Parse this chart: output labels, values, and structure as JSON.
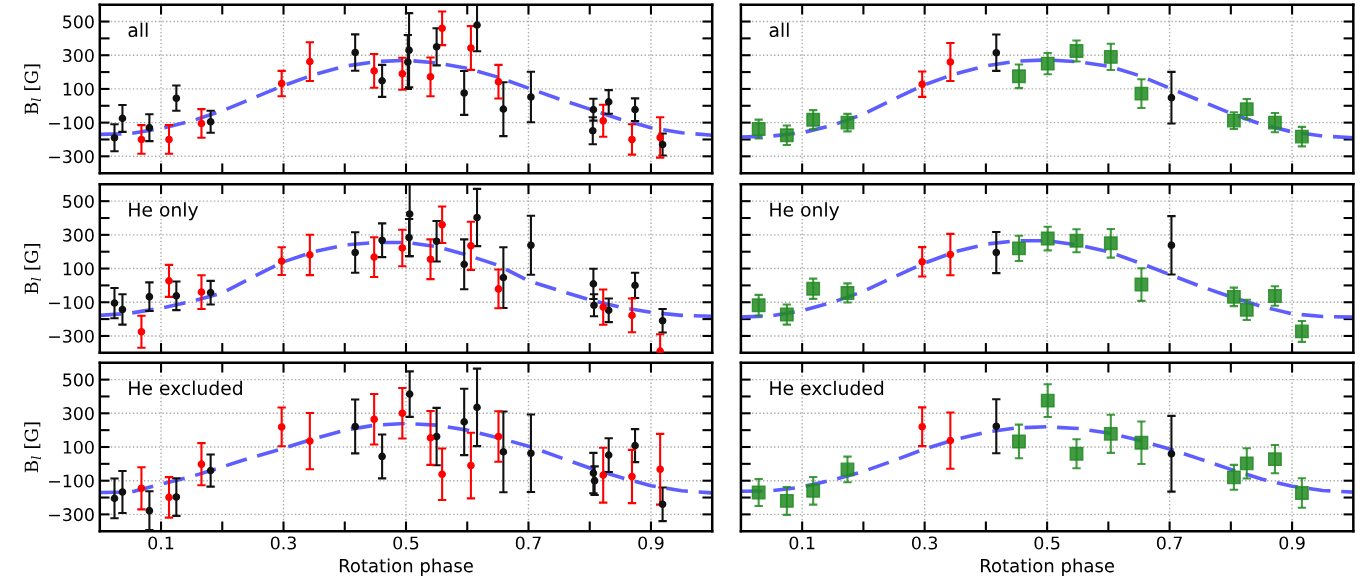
{
  "chart_data": [
    {
      "type": "scatter",
      "ylabel": "B$_{l}$ [G]",
      "annotations": [
        "all"
      ],
      "xlim": [
        0,
        1
      ],
      "ylim": [
        -400,
        600
      ],
      "xticks": [
        0.1,
        {
          "value": 0.2,
          "label": null
        },
        0.3,
        {
          "value": 0.4,
          "label": null
        },
        0.5,
        {
          "value": 0.6,
          "label": null
        },
        0.7,
        {
          "value": 0.8,
          "label": null
        },
        0.9
      ],
      "yticks": [
        {
          "value": -300,
          "label": "−300"
        },
        {
          "value": -200,
          "label": null
        },
        {
          "value": -100,
          "label": "−100"
        },
        {
          "value": 0,
          "label": null
        },
        100,
        {
          "value": 200,
          "label": null
        },
        300,
        {
          "value": 400,
          "label": null
        },
        500
      ],
      "tick_labels": "y",
      "grid": true,
      "series": [
        {
          "type": "scatter",
          "marker": "circle",
          "color": "#111111",
          "x": [
            0.024,
            0.037,
            0.081,
            0.125,
            0.181,
            0.417,
            0.461,
            0.503,
            0.505,
            0.55,
            0.595,
            0.616,
            0.659,
            0.704,
            0.805,
            0.806,
            0.831,
            0.874,
            0.919
          ],
          "values": [
            -190,
            -75,
            -130,
            45,
            -95,
            316,
            148,
            260,
            330,
            350,
            76,
            479,
            -20,
            52,
            -148,
            -23,
            23,
            -23,
            -230
          ],
          "errors": [
            80,
            80,
            80,
            75,
            65,
            108,
            95,
            160,
            220,
            110,
            130,
            155,
            160,
            150,
            80,
            65,
            70,
            67,
            65
          ]
        },
        {
          "type": "scatter",
          "marker": "circle",
          "color": "#ff0000",
          "x": [
            0.068,
            0.113,
            0.166,
            0.297,
            0.343,
            0.448,
            0.494,
            0.54,
            0.559,
            0.606,
            0.651,
            0.822,
            0.869,
            0.915
          ],
          "values": [
            -200,
            -200,
            -105,
            132,
            262,
            207,
            190,
            172,
            460,
            343,
            143,
            -89,
            -200,
            -188
          ],
          "errors": [
            85,
            85,
            85,
            75,
            115,
            100,
            95,
            115,
            100,
            130,
            100,
            95,
            90,
            120
          ]
        },
        {
          "type": "line",
          "line_style": "dashed",
          "color": "#4d4dff",
          "x": [
            0,
            0.05,
            0.1,
            0.15,
            0.2,
            0.25,
            0.3,
            0.35,
            0.4,
            0.45,
            0.5,
            0.55,
            0.6,
            0.65,
            0.7,
            0.75,
            0.8,
            0.85,
            0.9,
            0.95,
            1.0
          ],
          "values": [
            -170,
            -165,
            -135,
            -90,
            -30,
            45,
            120,
            185,
            235,
            262,
            270,
            255,
            222,
            170,
            105,
            40,
            -20,
            -80,
            -130,
            -160,
            -175
          ]
        }
      ]
    },
    {
      "type": "scatter",
      "annotations": [
        "all"
      ],
      "xlim": [
        0,
        1
      ],
      "ylim": [
        -400,
        600
      ],
      "xticks": [
        0.1,
        0.2,
        0.3,
        0.4,
        0.5,
        0.6,
        0.7,
        0.8,
        0.9
      ],
      "yticks": [
        -300,
        -200,
        -100,
        0,
        100,
        200,
        300,
        400,
        500
      ],
      "tick_labels": false,
      "grid": true,
      "series": [
        {
          "type": "scatter",
          "marker": "square",
          "color": "#228b22",
          "x": [
            0.029,
            0.075,
            0.118,
            0.174,
            0.454,
            0.501,
            0.548,
            0.604,
            0.654,
            0.805,
            0.826,
            0.872,
            0.916
          ],
          "values": [
            -138,
            -175,
            -83,
            -100,
            175,
            250,
            325,
            290,
            72,
            -88,
            -20,
            -100,
            -183
          ],
          "errors": [
            56,
            58,
            57,
            52,
            70,
            63,
            62,
            78,
            85,
            50,
            60,
            57,
            58
          ]
        },
        {
          "type": "scatter",
          "marker": "circle",
          "color": "#ff0000",
          "x": [
            0.296,
            0.342
          ],
          "values": [
            128,
            260
          ],
          "errors": [
            75,
            113
          ]
        },
        {
          "type": "scatter",
          "marker": "circle",
          "color": "#111111",
          "x": [
            0.417,
            0.703
          ],
          "values": [
            315,
            48
          ],
          "errors": [
            108,
            153
          ]
        },
        {
          "type": "line",
          "line_style": "dashed",
          "color": "#4d4dff",
          "x": [
            0,
            0.05,
            0.1,
            0.15,
            0.2,
            0.25,
            0.3,
            0.35,
            0.4,
            0.45,
            0.5,
            0.55,
            0.6,
            0.65,
            0.7,
            0.75,
            0.8,
            0.85,
            0.9,
            0.95,
            1.0
          ],
          "values": [
            -185,
            -180,
            -160,
            -115,
            -50,
            40,
            125,
            190,
            237,
            265,
            272,
            262,
            235,
            180,
            105,
            30,
            -45,
            -110,
            -155,
            -180,
            -190
          ]
        }
      ]
    },
    {
      "type": "scatter",
      "ylabel": "B$_{l}$ [G]",
      "annotations": [
        "He only"
      ],
      "xlim": [
        0,
        1
      ],
      "ylim": [
        -400,
        600
      ],
      "xticks": [
        0.1,
        {
          "value": 0.2,
          "label": null
        },
        0.3,
        {
          "value": 0.4,
          "label": null
        },
        0.5,
        {
          "value": 0.6,
          "label": null
        },
        0.7,
        {
          "value": 0.8,
          "label": null
        },
        0.9
      ],
      "yticks": [
        {
          "value": -300,
          "label": "−300"
        },
        {
          "value": -200,
          "label": null
        },
        {
          "value": -100,
          "label": "−100"
        },
        {
          "value": 0,
          "label": null
        },
        100,
        {
          "value": 200,
          "label": null
        },
        300,
        {
          "value": 400,
          "label": null
        },
        500
      ],
      "tick_labels": "y",
      "grid": true,
      "series": [
        {
          "type": "scatter",
          "marker": "circle",
          "color": "#111111",
          "x": [
            0.024,
            0.037,
            0.081,
            0.125,
            0.181,
            0.417,
            0.461,
            0.505,
            0.506,
            0.55,
            0.595,
            0.616,
            0.659,
            0.704,
            0.806,
            0.807,
            0.831,
            0.874,
            0.919
          ],
          "values": [
            -105,
            -143,
            -67,
            -62,
            -43,
            195,
            268,
            284,
            424,
            262,
            125,
            403,
            46,
            238,
            9,
            -118,
            -148,
            0,
            -210
          ],
          "errors": [
            90,
            90,
            85,
            85,
            70,
            120,
            100,
            110,
            250,
            120,
            148,
            170,
            180,
            175,
            90,
            65,
            70,
            75,
            70
          ]
        },
        {
          "type": "scatter",
          "marker": "circle",
          "color": "#ff0000",
          "x": [
            0.068,
            0.113,
            0.166,
            0.297,
            0.343,
            0.448,
            0.494,
            0.54,
            0.559,
            0.606,
            0.651,
            0.822,
            0.869,
            0.915
          ],
          "values": [
            -275,
            27,
            -40,
            144,
            181,
            168,
            222,
            155,
            360,
            235,
            -21,
            -129,
            -178,
            -390
          ],
          "errors": [
            95,
            95,
            100,
            82,
            120,
            118,
            108,
            118,
            108,
            143,
            115,
            105,
            100,
            100
          ]
        },
        {
          "type": "line",
          "line_style": "dashed",
          "color": "#4d4dff",
          "x": [
            0,
            0.05,
            0.1,
            0.15,
            0.2,
            0.25,
            0.3,
            0.35,
            0.4,
            0.45,
            0.5,
            0.55,
            0.6,
            0.65,
            0.7,
            0.75,
            0.8,
            0.85,
            0.9,
            0.95,
            1.0
          ],
          "values": [
            -178,
            -165,
            -135,
            -95,
            -45,
            50,
            140,
            200,
            240,
            255,
            255,
            230,
            180,
            120,
            27,
            -30,
            -85,
            -130,
            -160,
            -178,
            -183
          ]
        }
      ]
    },
    {
      "type": "scatter",
      "annotations": [
        "He only"
      ],
      "xlim": [
        0,
        1
      ],
      "ylim": [
        -400,
        600
      ],
      "xticks": [
        0.1,
        0.2,
        0.3,
        0.4,
        0.5,
        0.6,
        0.7,
        0.8,
        0.9
      ],
      "yticks": [
        -300,
        -200,
        -100,
        0,
        100,
        200,
        300,
        400,
        500
      ],
      "tick_labels": false,
      "grid": true,
      "series": [
        {
          "type": "scatter",
          "marker": "square",
          "color": "#228b22",
          "x": [
            0.029,
            0.075,
            0.118,
            0.174,
            0.454,
            0.501,
            0.548,
            0.604,
            0.654,
            0.805,
            0.826,
            0.872,
            0.916
          ],
          "values": [
            -118,
            -173,
            -20,
            -45,
            220,
            278,
            265,
            250,
            5,
            -68,
            -145,
            -63,
            -273
          ],
          "errors": [
            62,
            60,
            60,
            57,
            75,
            70,
            68,
            85,
            97,
            55,
            60,
            58,
            62
          ]
        },
        {
          "type": "scatter",
          "marker": "circle",
          "color": "#ff0000",
          "x": [
            0.296,
            0.342
          ],
          "values": [
            140,
            183
          ],
          "errors": [
            87,
            123
          ]
        },
        {
          "type": "scatter",
          "marker": "circle",
          "color": "#111111",
          "x": [
            0.417,
            0.703
          ],
          "values": [
            195,
            238
          ],
          "errors": [
            122,
            173
          ]
        },
        {
          "type": "line",
          "line_style": "dashed",
          "color": "#4d4dff",
          "x": [
            0,
            0.05,
            0.1,
            0.15,
            0.2,
            0.25,
            0.3,
            0.35,
            0.4,
            0.45,
            0.5,
            0.55,
            0.6,
            0.65,
            0.7,
            0.75,
            0.8,
            0.85,
            0.9,
            0.95,
            1.0
          ],
          "values": [
            -188,
            -180,
            -150,
            -100,
            -35,
            50,
            133,
            200,
            245,
            265,
            265,
            240,
            200,
            135,
            65,
            -5,
            -68,
            -125,
            -168,
            -185,
            -188
          ]
        }
      ]
    },
    {
      "type": "scatter",
      "ylabel": "B$_{l}$ [G]",
      "xlabel": "Rotation phase",
      "annotations": [
        "He excluded"
      ],
      "xlim": [
        0,
        1
      ],
      "ylim": [
        -400,
        600
      ],
      "xticks": [
        0.1,
        {
          "value": 0.2,
          "label": null
        },
        0.3,
        {
          "value": 0.4,
          "label": null
        },
        0.5,
        {
          "value": 0.6,
          "label": null
        },
        0.7,
        {
          "value": 0.8,
          "label": null
        },
        0.9
      ],
      "yticks": [
        {
          "value": -300,
          "label": "−300"
        },
        {
          "value": -200,
          "label": null
        },
        {
          "value": -100,
          "label": "−100"
        },
        {
          "value": 0,
          "label": null
        },
        100,
        {
          "value": 200,
          "label": null
        },
        300,
        {
          "value": 400,
          "label": null
        },
        500
      ],
      "grid": true,
      "series": [
        {
          "type": "scatter",
          "marker": "circle",
          "color": "#111111",
          "x": [
            0.024,
            0.037,
            0.081,
            0.125,
            0.181,
            0.417,
            0.461,
            0.506,
            0.55,
            0.595,
            0.616,
            0.659,
            0.704,
            0.806,
            0.808,
            0.831,
            0.874,
            0.919
          ],
          "values": [
            -205,
            -167,
            -278,
            -197,
            -40,
            222,
            44,
            414,
            162,
            249,
            335,
            71,
            63,
            -55,
            -100,
            52,
            108,
            -240
          ],
          "errors": [
            118,
            125,
            115,
            112,
            95,
            160,
            130,
            135,
            170,
            197,
            230,
            240,
            230,
            120,
            85,
            100,
            98,
            100
          ]
        },
        {
          "type": "scatter",
          "marker": "circle",
          "color": "#ff0000",
          "x": [
            0.068,
            0.113,
            0.166,
            0.297,
            0.343,
            0.448,
            0.494,
            0.54,
            0.559,
            0.606,
            0.651,
            0.822,
            0.869,
            0.915
          ],
          "values": [
            -145,
            -199,
            -2,
            219,
            135,
            265,
            300,
            154,
            -62,
            -10,
            162,
            -67,
            -75,
            -32
          ],
          "errors": [
            125,
            120,
            125,
            115,
            167,
            150,
            150,
            160,
            153,
            195,
            150,
            163,
            158,
            210
          ]
        },
        {
          "type": "line",
          "line_style": "dashed",
          "color": "#4d4dff",
          "x": [
            0,
            0.05,
            0.1,
            0.15,
            0.2,
            0.25,
            0.3,
            0.35,
            0.4,
            0.45,
            0.5,
            0.55,
            0.6,
            0.65,
            0.7,
            0.75,
            0.8,
            0.85,
            0.9,
            0.95,
            1.0
          ],
          "values": [
            -170,
            -168,
            -120,
            -75,
            -18,
            40,
            92,
            150,
            200,
            230,
            240,
            230,
            200,
            155,
            105,
            40,
            -25,
            -80,
            -130,
            -160,
            -172
          ]
        }
      ]
    },
    {
      "type": "scatter",
      "xlabel": "Rotation phase",
      "annotations": [
        "He excluded"
      ],
      "xlim": [
        0,
        1
      ],
      "ylim": [
        -400,
        600
      ],
      "xticks": [
        0.1,
        {
          "value": 0.2,
          "label": null
        },
        0.3,
        {
          "value": 0.4,
          "label": null
        },
        0.5,
        {
          "value": 0.6,
          "label": null
        },
        0.7,
        {
          "value": 0.8,
          "label": null
        },
        0.9
      ],
      "yticks": [
        -300,
        -200,
        -100,
        0,
        100,
        200,
        300,
        400,
        500
      ],
      "tick_labels": "x",
      "grid": true,
      "series": [
        {
          "type": "scatter",
          "marker": "square",
          "color": "#228b22",
          "x": [
            0.029,
            0.075,
            0.118,
            0.174,
            0.454,
            0.501,
            0.548,
            0.604,
            0.654,
            0.805,
            0.826,
            0.872,
            0.916
          ],
          "values": [
            -170,
            -220,
            -160,
            -33,
            133,
            375,
            60,
            178,
            125,
            -80,
            3,
            28,
            -173
          ],
          "errors": [
            80,
            83,
            82,
            76,
            100,
            97,
            86,
            113,
            126,
            74,
            90,
            84,
            88
          ]
        },
        {
          "type": "scatter",
          "marker": "circle",
          "color": "#ff0000",
          "x": [
            0.296,
            0.342
          ],
          "values": [
            220,
            138
          ],
          "errors": [
            115,
            167
          ]
        },
        {
          "type": "scatter",
          "marker": "circle",
          "color": "#111111",
          "x": [
            0.417,
            0.703
          ],
          "values": [
            223,
            60
          ],
          "errors": [
            160,
            225
          ]
        },
        {
          "type": "line",
          "line_style": "dashed",
          "color": "#4d4dff",
          "x": [
            0,
            0.05,
            0.1,
            0.15,
            0.2,
            0.25,
            0.3,
            0.35,
            0.4,
            0.45,
            0.5,
            0.55,
            0.6,
            0.65,
            0.7,
            0.75,
            0.8,
            0.85,
            0.9,
            0.95,
            1.0
          ],
          "values": [
            -163,
            -160,
            -138,
            -95,
            -45,
            20,
            88,
            145,
            188,
            213,
            220,
            210,
            183,
            140,
            88,
            28,
            -33,
            -90,
            -133,
            -158,
            -168
          ]
        }
      ]
    }
  ]
}
